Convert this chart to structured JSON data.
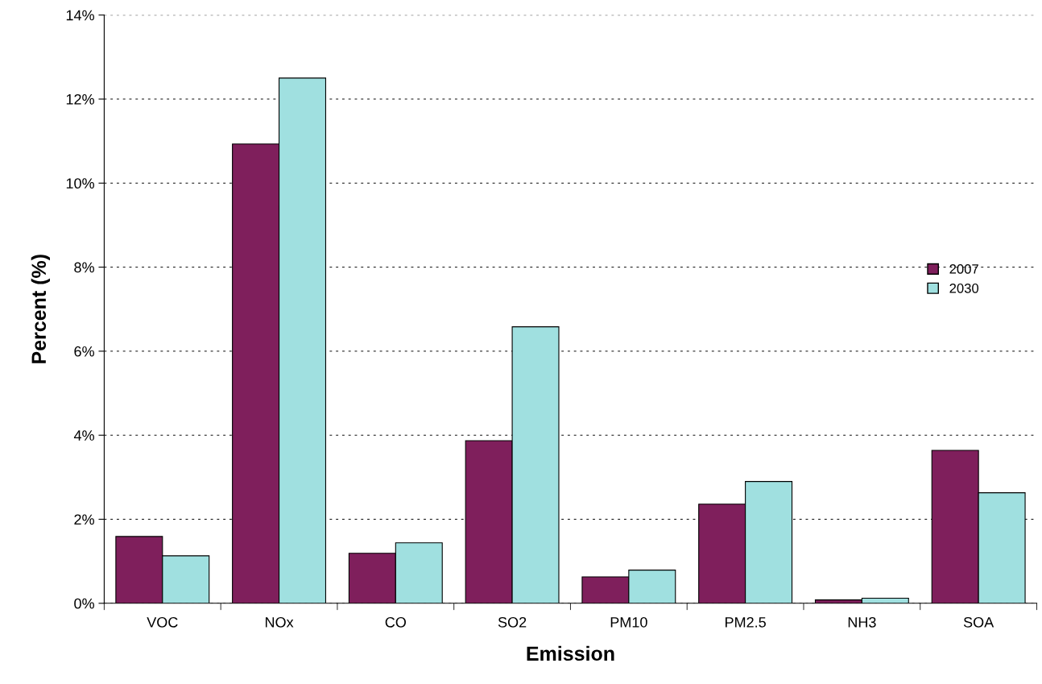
{
  "chart_data": {
    "type": "bar",
    "xlabel": "Emission",
    "ylabel": "Percent (%)",
    "categories": [
      "VOC",
      "NOx",
      "CO",
      "SO2",
      "PM10",
      "PM2.5",
      "NH3",
      "SOA"
    ],
    "series": [
      {
        "name": "2007",
        "color": "#7f1f5c",
        "values": [
          1.59,
          10.93,
          1.19,
          3.87,
          0.63,
          2.36,
          0.08,
          3.64
        ]
      },
      {
        "name": "2030",
        "color": "#a0e0e0",
        "values": [
          1.13,
          12.5,
          1.44,
          6.58,
          0.79,
          2.9,
          0.12,
          2.63
        ]
      }
    ],
    "ylim": [
      0,
      14
    ],
    "yticks": [
      {
        "value": 0,
        "label": "0%"
      },
      {
        "value": 2,
        "label": "2%"
      },
      {
        "value": 4,
        "label": "4%"
      },
      {
        "value": 6,
        "label": "6%"
      },
      {
        "value": 8,
        "label": "8%"
      },
      {
        "value": 10,
        "label": "10%"
      },
      {
        "value": 12,
        "label": "12%"
      },
      {
        "value": 14,
        "label": "14%"
      }
    ],
    "grid": "y",
    "legend": "right"
  }
}
